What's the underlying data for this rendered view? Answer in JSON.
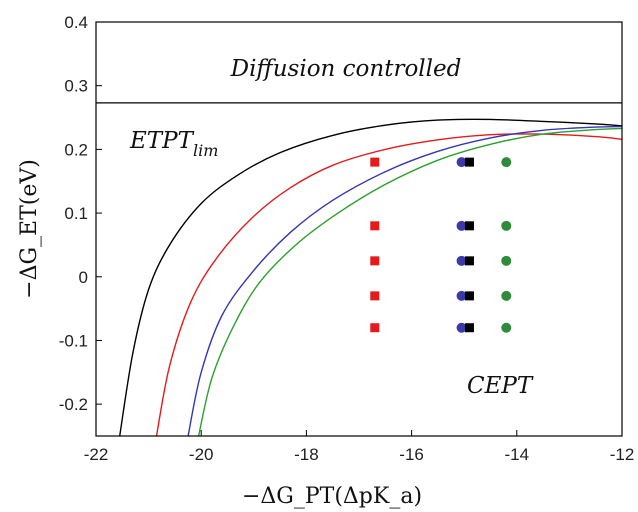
{
  "chart_data": {
    "type": "scatter",
    "xlabel": "−ΔG_PT(ΔpK_a)",
    "ylabel": "−ΔG_ET(eV)",
    "xlim": [
      -22,
      -12
    ],
    "ylim": [
      -0.25,
      0.4
    ],
    "x_ticks": [
      -22,
      -20,
      -18,
      -16,
      -14,
      -12
    ],
    "y_ticks": [
      -0.2,
      -0.1,
      0,
      0.1,
      0.2,
      0.3,
      0.4
    ],
    "x_tick_labels": [
      "-22",
      "-20",
      "-18",
      "-16",
      "-14",
      "-12"
    ],
    "y_tick_labels": [
      "-0.2",
      "-0.1",
      "0",
      "0.1",
      "0.2",
      "0.3",
      "0.4"
    ],
    "grid": false,
    "diffusion_limit_y": 0.273,
    "annotations": {
      "diffusion": "Diffusion controlled",
      "etpt": "ETPT",
      "etpt_sub": "lim",
      "cept": "CEPT"
    },
    "curves": [
      {
        "color": "#000000",
        "points": [
          [
            -21.55,
            -0.25
          ],
          [
            -21.3,
            -0.12
          ],
          [
            -21.0,
            -0.02
          ],
          [
            -20.6,
            0.05
          ],
          [
            -20.0,
            0.115
          ],
          [
            -19.3,
            0.16
          ],
          [
            -18.5,
            0.195
          ],
          [
            -17.5,
            0.222
          ],
          [
            -16.5,
            0.238
          ],
          [
            -15.5,
            0.246
          ],
          [
            -14.5,
            0.247
          ],
          [
            -13.5,
            0.244
          ],
          [
            -12.5,
            0.24
          ],
          [
            -12.0,
            0.237
          ]
        ]
      },
      {
        "color": "#e41a1c",
        "points": [
          [
            -20.85,
            -0.25
          ],
          [
            -20.6,
            -0.14
          ],
          [
            -20.2,
            -0.04
          ],
          [
            -19.7,
            0.03
          ],
          [
            -19.0,
            0.095
          ],
          [
            -18.3,
            0.14
          ],
          [
            -17.5,
            0.175
          ],
          [
            -16.5,
            0.2
          ],
          [
            -15.5,
            0.215
          ],
          [
            -14.5,
            0.223
          ],
          [
            -13.5,
            0.224
          ],
          [
            -12.5,
            0.22
          ],
          [
            -12.0,
            0.216
          ]
        ]
      },
      {
        "color": "#3535b5",
        "points": [
          [
            -20.25,
            -0.25
          ],
          [
            -20.0,
            -0.15
          ],
          [
            -19.6,
            -0.06
          ],
          [
            -19.0,
            0.01
          ],
          [
            -18.3,
            0.07
          ],
          [
            -17.5,
            0.12
          ],
          [
            -16.5,
            0.165
          ],
          [
            -15.5,
            0.197
          ],
          [
            -14.5,
            0.218
          ],
          [
            -13.5,
            0.23
          ],
          [
            -12.5,
            0.235
          ],
          [
            -12.0,
            0.236
          ]
        ]
      },
      {
        "color": "#2ca02c",
        "points": [
          [
            -20.05,
            -0.25
          ],
          [
            -19.8,
            -0.16
          ],
          [
            -19.4,
            -0.08
          ],
          [
            -18.9,
            -0.01
          ],
          [
            -18.2,
            0.05
          ],
          [
            -17.4,
            0.1
          ],
          [
            -16.5,
            0.145
          ],
          [
            -15.5,
            0.183
          ],
          [
            -14.5,
            0.208
          ],
          [
            -13.5,
            0.224
          ],
          [
            -12.5,
            0.231
          ],
          [
            -12.0,
            0.233
          ]
        ]
      }
    ],
    "series": [
      {
        "name": "",
        "marker": "square",
        "color": "#e41a1c",
        "points": [
          [
            -16.7,
            0.18
          ],
          [
            -16.7,
            0.08
          ],
          [
            -16.7,
            0.025
          ],
          [
            -16.7,
            -0.03
          ],
          [
            -16.7,
            -0.08
          ]
        ]
      },
      {
        "name": "",
        "marker": "circle",
        "color": "#3a3aa8",
        "points": [
          [
            -15.05,
            0.18
          ],
          [
            -15.05,
            0.08
          ],
          [
            -15.05,
            0.025
          ],
          [
            -15.05,
            -0.03
          ],
          [
            -15.05,
            -0.08
          ]
        ]
      },
      {
        "name": "",
        "marker": "square",
        "color": "#000000",
        "points": [
          [
            -14.9,
            0.18
          ],
          [
            -14.9,
            0.08
          ],
          [
            -14.9,
            0.025
          ],
          [
            -14.9,
            -0.03
          ],
          [
            -14.9,
            -0.08
          ]
        ]
      },
      {
        "name": "",
        "marker": "circle",
        "color": "#2e8b3a",
        "points": [
          [
            -14.2,
            0.18
          ],
          [
            -14.2,
            0.08
          ],
          [
            -14.2,
            0.025
          ],
          [
            -14.2,
            -0.03
          ],
          [
            -14.2,
            -0.08
          ]
        ]
      }
    ]
  }
}
